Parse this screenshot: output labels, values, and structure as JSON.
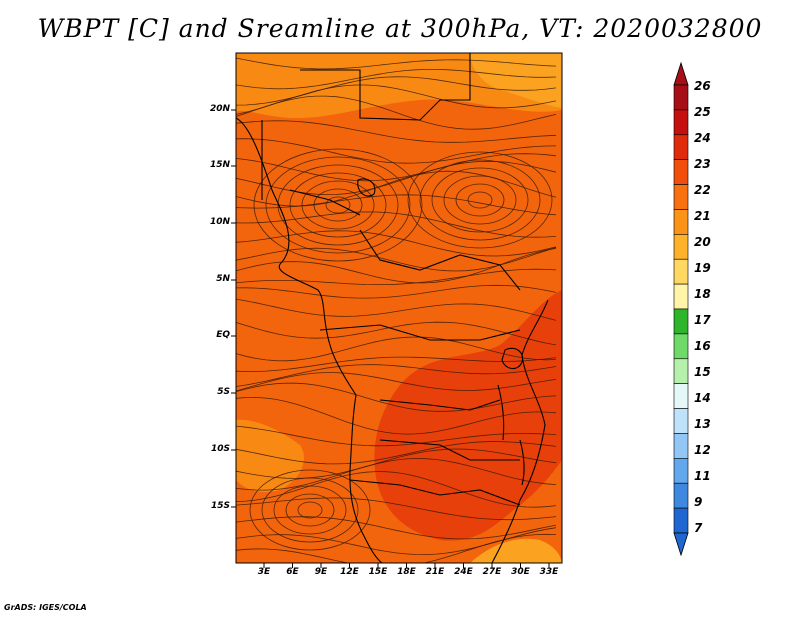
{
  "title": "WBPT [C] and Sreamline at 300hPa, VT: 2020032800",
  "y_axis_labels": [
    "20N",
    "15N",
    "10N",
    "5N",
    "EQ",
    "5S",
    "10S",
    "15S"
  ],
  "x_axis_labels": [
    "3E",
    "6E",
    "9E",
    "12E",
    "15E",
    "18E",
    "21E",
    "24E",
    "27E",
    "30E",
    "33E"
  ],
  "colorbar": {
    "labels": [
      "26",
      "25",
      "24",
      "23",
      "22",
      "21",
      "20",
      "19",
      "18",
      "17",
      "16",
      "15",
      "14",
      "13",
      "12",
      "11",
      "9",
      "7"
    ],
    "colors": [
      "#a50f15",
      "#c4110f",
      "#e02a0c",
      "#f04e0a",
      "#f87010",
      "#fa9316",
      "#fdb22a",
      "#fed860",
      "#fff4a8",
      "#2fb52c",
      "#6fd96a",
      "#b6f0ac",
      "#e4f8f8",
      "#bfe2fb",
      "#92c6f4",
      "#63a7ec",
      "#3e88e0",
      "#1f66d0"
    ]
  },
  "footer": "GrADS: IGES/COLA",
  "colors": {
    "field_base": "#f2650d",
    "field_warm": "#e8400a",
    "field_cool": "#f88a14",
    "field_light": "#fba320",
    "streamline": "#3a1a08",
    "coastline": "#000000"
  }
}
